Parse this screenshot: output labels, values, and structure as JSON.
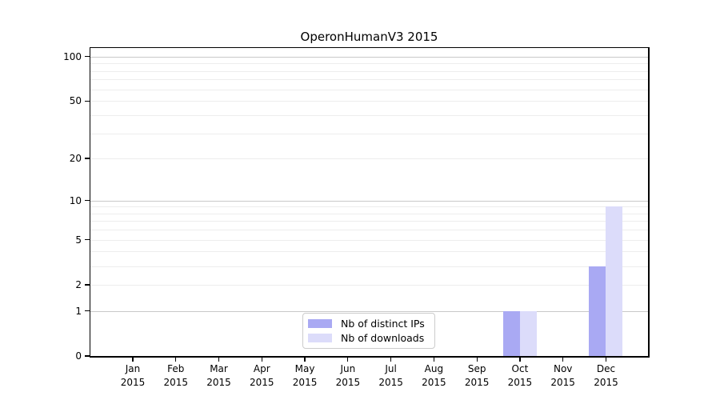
{
  "title": "OperonHumanV3 2015",
  "chart_data": {
    "type": "bar",
    "title": "OperonHumanV3 2015",
    "categories": [
      "Jan",
      "Feb",
      "Mar",
      "Apr",
      "May",
      "Jun",
      "Jul",
      "Aug",
      "Sep",
      "Oct",
      "Nov",
      "Dec"
    ],
    "year": "2015",
    "series": [
      {
        "name": "Nb of distinct IPs",
        "color": "#a9a9f3",
        "values": [
          0,
          0,
          0,
          0,
          0,
          0,
          0,
          0,
          0,
          1,
          0,
          3
        ]
      },
      {
        "name": "Nb of downloads",
        "color": "#dcdcfa",
        "values": [
          0,
          0,
          0,
          0,
          0,
          0,
          0,
          0,
          0,
          1,
          0,
          9
        ]
      }
    ],
    "y_ticks": [
      0,
      1,
      2,
      5,
      10,
      20,
      50,
      100
    ],
    "y_scale": "log1p",
    "ylim": [
      0,
      114
    ],
    "xlabel": "",
    "ylabel": "",
    "grid": "both",
    "legend_position": "lower center"
  },
  "colors": {
    "background": "#ffffff",
    "axis": "#000000",
    "grid_major": "#c9c9c9",
    "grid_minor": "#ededed",
    "legend_border": "#cccccc",
    "text": "#000000"
  }
}
